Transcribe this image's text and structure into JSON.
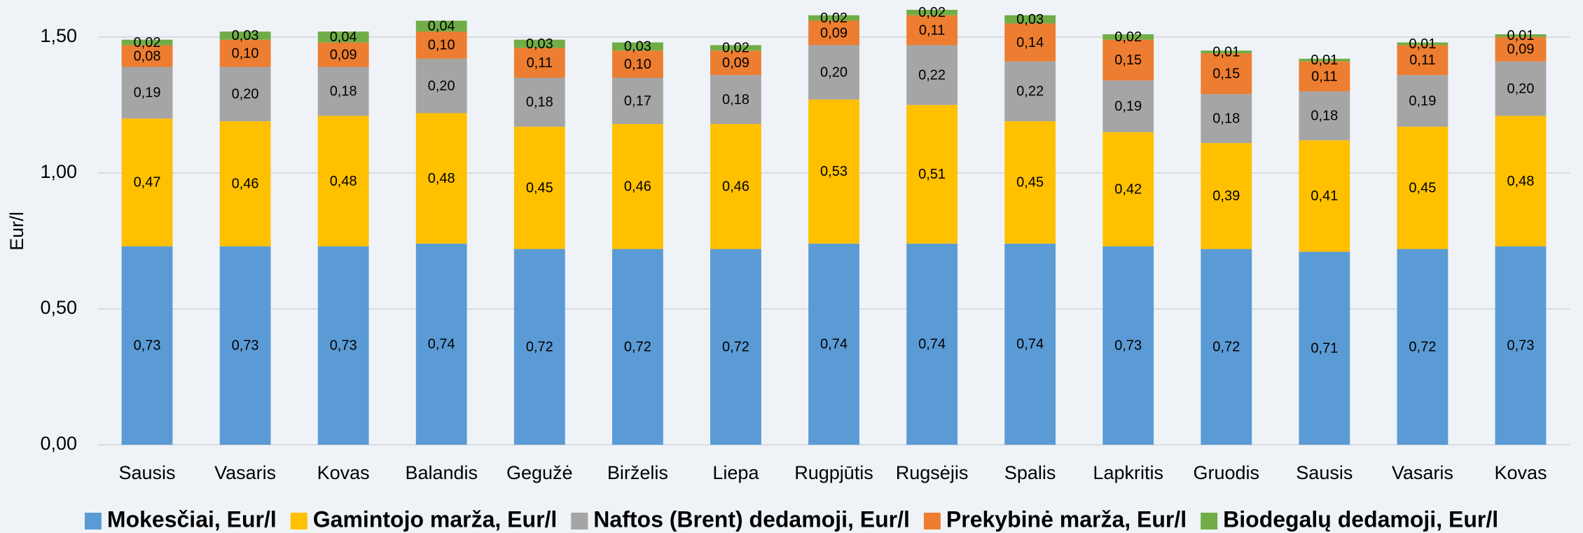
{
  "chart_data": {
    "type": "stacked_bar",
    "y_label": "Eur/l",
    "categories": [
      "Sausis",
      "Vasaris",
      "Kovas",
      "Balandis",
      "Gegužė",
      "Birželis",
      "Liepa",
      "Rugpjūtis",
      "Rugsėjis",
      "Spalis",
      "Lapkritis",
      "Gruodis",
      "Sausis",
      "Vasaris",
      "Kovas"
    ],
    "series": [
      {
        "name": "Mokesčiai, Eur/l",
        "color": "#5b9bd5",
        "values": [
          0.73,
          0.73,
          0.73,
          0.74,
          0.72,
          0.72,
          0.72,
          0.74,
          0.74,
          0.74,
          0.73,
          0.72,
          0.71,
          0.72,
          0.73
        ],
        "value_labels": [
          "0,73",
          "0,73",
          "0,73",
          "0,74",
          "0,72",
          "0,72",
          "0,72",
          "0,74",
          "0,74",
          "0,74",
          "0,73",
          "0,72",
          "0,71",
          "0,72",
          "0,73"
        ]
      },
      {
        "name": "Gamintojo marža, Eur/l",
        "color": "#ffc000",
        "values": [
          0.47,
          0.46,
          0.48,
          0.48,
          0.45,
          0.46,
          0.46,
          0.53,
          0.51,
          0.45,
          0.42,
          0.39,
          0.41,
          0.45,
          0.48
        ],
        "value_labels": [
          "0,47",
          "0,46",
          "0,48",
          "0,48",
          "0,45",
          "0,46",
          "0,46",
          "0,53",
          "0,51",
          "0,45",
          "0,42",
          "0,39",
          "0,41",
          "0,45",
          "0,48"
        ]
      },
      {
        "name": "Naftos (Brent) dedamoji, Eur/l",
        "color": "#a5a5a5",
        "values": [
          0.19,
          0.2,
          0.18,
          0.2,
          0.18,
          0.17,
          0.18,
          0.2,
          0.22,
          0.22,
          0.19,
          0.18,
          0.18,
          0.19,
          0.2
        ],
        "value_labels": [
          "0,19",
          "0,20",
          "0,18",
          "0,20",
          "0,18",
          "0,17",
          "0,18",
          "0,20",
          "0,22",
          "0,22",
          "0,19",
          "0,18",
          "0,18",
          "0,19",
          "0,20"
        ]
      },
      {
        "name": "Prekybinė marža, Eur/l",
        "color": "#ed7d31",
        "values": [
          0.08,
          0.1,
          0.09,
          0.1,
          0.11,
          0.1,
          0.09,
          0.09,
          0.11,
          0.14,
          0.15,
          0.15,
          0.11,
          0.11,
          0.09
        ],
        "value_labels": [
          "0,08",
          "0,10",
          "0,09",
          "0,10",
          "0,11",
          "0,10",
          "0,09",
          "0,09",
          "0,11",
          "0,14",
          "0,15",
          "0,15",
          "0,11",
          "0,11",
          "0,09"
        ]
      },
      {
        "name": "Biodegalų dedamoji, Eur/l",
        "color": "#70ad47",
        "values": [
          0.02,
          0.03,
          0.04,
          0.04,
          0.03,
          0.03,
          0.02,
          0.02,
          0.02,
          0.03,
          0.02,
          0.01,
          0.01,
          0.01,
          0.01
        ],
        "value_labels": [
          "0,02",
          "0,03",
          "0,04",
          "0,04",
          "0,03",
          "0,03",
          "0,02",
          "0,02",
          "0,02",
          "0,03",
          "0,02",
          "0,01",
          "0,01",
          "0,01",
          "0,01"
        ]
      }
    ],
    "ylim": [
      0,
      1.6
    ],
    "yticks": [
      {
        "value": 0,
        "label": "0,00"
      },
      {
        "value": 0.5,
        "label": "0,50"
      },
      {
        "value": 1,
        "label": "1,00"
      },
      {
        "value": 1.5,
        "label": "1,50"
      }
    ],
    "grid": true,
    "legend": "bottom"
  }
}
